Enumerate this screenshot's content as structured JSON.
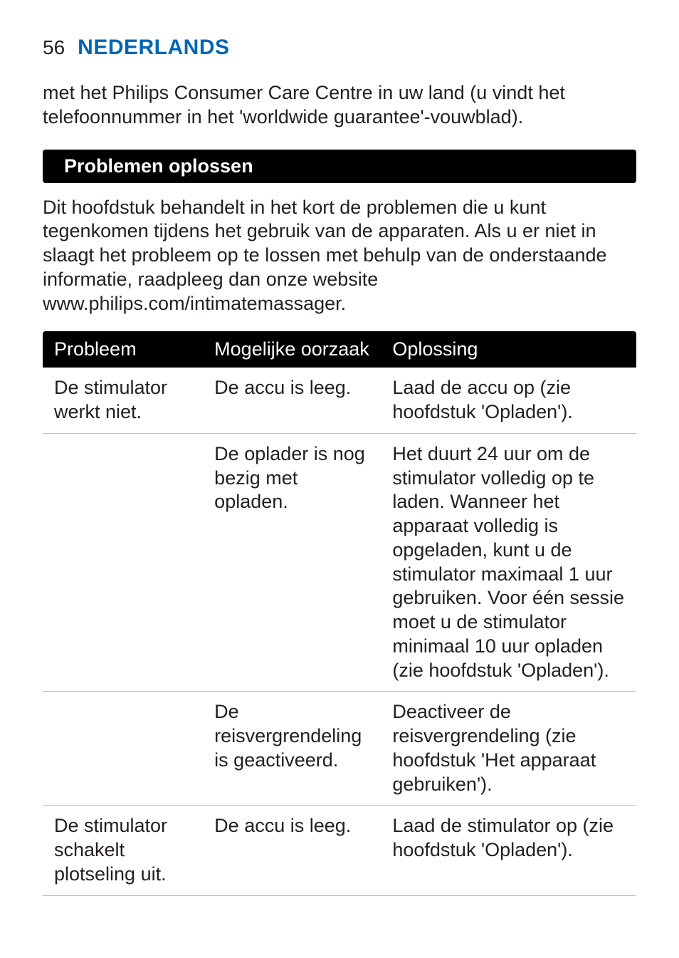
{
  "header": {
    "page_number": "56",
    "language_title": "NEDERLANDS",
    "title_color": "#0066b3"
  },
  "intro_paragraph": "met het Philips Consumer Care Centre in uw land (u vindt het telefoonnummer in het 'worldwide guarantee'-vouwblad).",
  "section": {
    "title": "Problemen oplossen",
    "bar_background": "#000000",
    "bar_text_color": "#ffffff",
    "intro": "Dit hoofdstuk behandelt in het kort de problemen die u kunt tegenkomen tijdens het gebruik van de apparaten. Als u er niet in slaagt het probleem op te lossen met behulp van de onderstaande informatie, raadpleeg dan onze website www.philips.com/intimatemassager."
  },
  "table": {
    "header_background": "#000000",
    "header_text_color": "#ffffff",
    "row_border_color": "#bdbdbd",
    "body_text_color": "#231f20",
    "font_size_pt": 20,
    "columns": [
      "Probleem",
      "Mogelijke oorzaak",
      "Oplossing"
    ],
    "column_widths_pct": [
      27,
      30,
      43
    ],
    "rows": [
      [
        "De stimulator werkt niet.",
        "De accu is leeg.",
        "Laad de accu op (zie hoofdstuk 'Opladen')."
      ],
      [
        "",
        "De oplader is nog bezig met opladen.",
        "Het duurt 24 uur om de stimulator volledig op te laden. Wanneer het apparaat volledig is opgeladen, kunt u de stimulator maximaal 1 uur gebruiken. Voor één sessie moet u de stimulator minimaal 10 uur opladen (zie hoofdstuk 'Opladen')."
      ],
      [
        "",
        "De reisvergrendeling is geactiveerd.",
        "Deactiveer de reisvergrendeling (zie hoofdstuk 'Het apparaat gebruiken')."
      ],
      [
        "De stimulator schakelt plotseling uit.",
        "De accu is leeg.",
        "Laad de stimulator op (zie hoofdstuk 'Opladen')."
      ]
    ]
  },
  "typography": {
    "body_font_family": "Gill Sans",
    "body_font_weight": 300,
    "heading_font_weight": 700,
    "body_color": "#231f20",
    "background_color": "#ffffff"
  }
}
